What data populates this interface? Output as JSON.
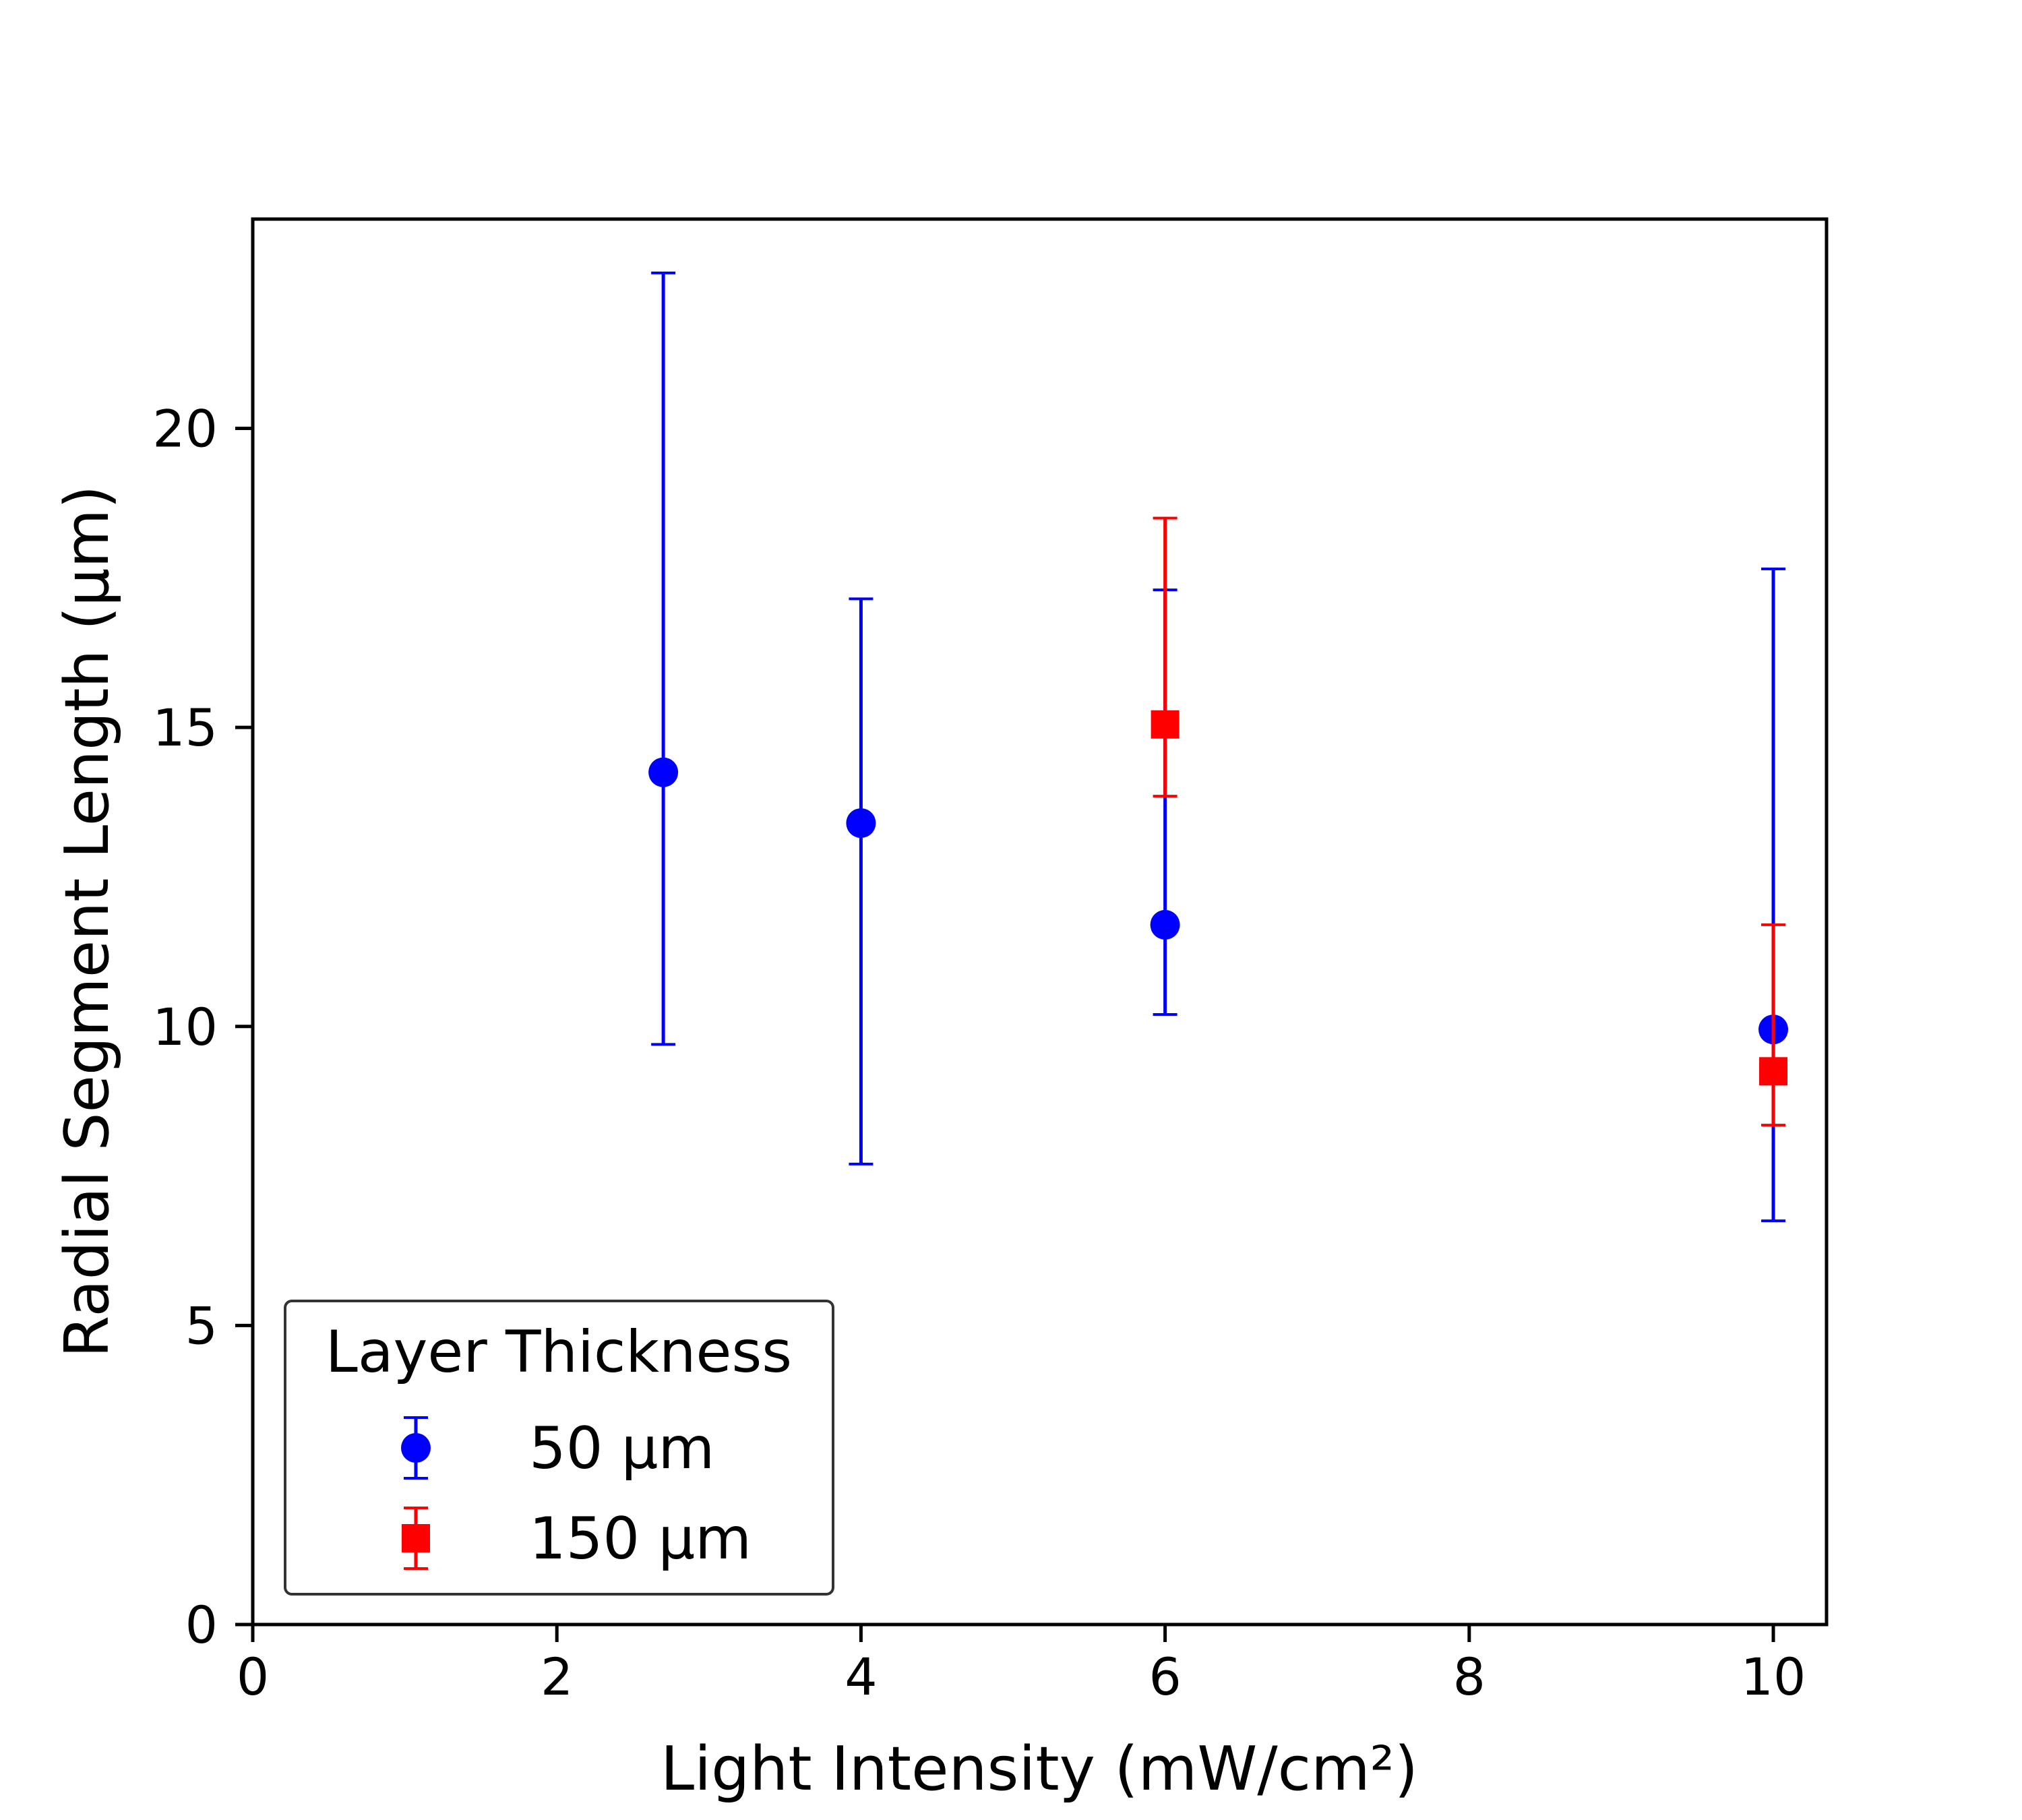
{
  "chart_data": {
    "type": "scatter",
    "title": "",
    "xlabel": "Light Intensity (mW/cm²)",
    "ylabel": "Radial Segment Length (μm)",
    "xlim": [
      0,
      10.35
    ],
    "ylim": [
      0,
      23.5
    ],
    "xticks": [
      0,
      2,
      4,
      6,
      8,
      10
    ],
    "yticks": [
      0,
      5,
      10,
      15,
      20
    ],
    "grid": false,
    "legend": {
      "title": "Layer Thickness",
      "placement": "lower-left"
    },
    "series": [
      {
        "name": "50 μm",
        "color": "#0000ff",
        "marker": "circle",
        "points": [
          {
            "x": 2.7,
            "y": 14.25,
            "ylow": 9.7,
            "yhigh": 22.6
          },
          {
            "x": 4.0,
            "y": 13.4,
            "ylow": 7.7,
            "yhigh": 17.15
          },
          {
            "x": 6.0,
            "y": 11.7,
            "ylow": 10.2,
            "yhigh": 17.3
          },
          {
            "x": 10.0,
            "y": 9.95,
            "ylow": 6.75,
            "yhigh": 17.65
          }
        ]
      },
      {
        "name": "150 μm",
        "color": "#ff0000",
        "marker": "square",
        "points": [
          {
            "x": 6.0,
            "y": 15.05,
            "ylow": 13.85,
            "yhigh": 18.5
          },
          {
            "x": 10.0,
            "y": 9.25,
            "ylow": 8.35,
            "yhigh": 11.7
          }
        ]
      }
    ]
  }
}
